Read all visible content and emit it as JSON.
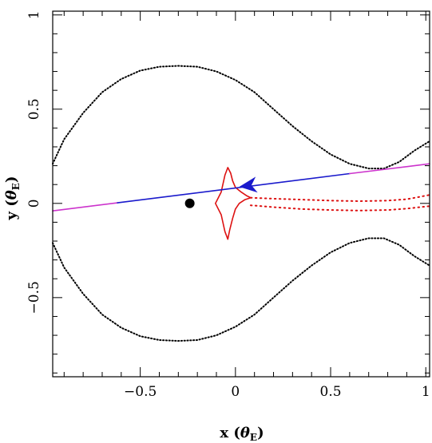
{
  "chart_data": {
    "type": "line",
    "title": "",
    "xlabel": {
      "main": "x",
      "unit_symbol": "θ",
      "unit_sub": "E"
    },
    "ylabel": {
      "main": "y",
      "unit_symbol": "θ",
      "unit_sub": "E"
    },
    "xlim": [
      -0.96,
      1.02
    ],
    "ylim": [
      -0.92,
      1.02
    ],
    "x_ticks": [
      {
        "value": -0.5,
        "label": "−0.5"
      },
      {
        "value": 0,
        "label": "0"
      },
      {
        "value": 0.5,
        "label": "0.5"
      },
      {
        "value": 1,
        "label": "1"
      }
    ],
    "y_ticks": [
      {
        "value": -0.5,
        "label": "−0.5"
      },
      {
        "value": 0,
        "label": "0"
      },
      {
        "value": 0.5,
        "label": "0.5"
      },
      {
        "value": 1,
        "label": "1"
      }
    ],
    "x_minor_step": 0.1,
    "y_minor_step": 0.1,
    "grid": false,
    "colors": {
      "critical_curve": "#000000",
      "caustic": "#dd1111",
      "trajectory_outer": "#cc33cc",
      "trajectory_inner": "#1a1acc",
      "arrow": "#1a1acc",
      "lens_point": "#000000"
    },
    "series": [
      {
        "style": "dotted",
        "color_key": "critical_curve",
        "points": [
          [
            -0.96,
            0.21
          ],
          [
            -0.9,
            0.34
          ],
          [
            -0.8,
            0.48
          ],
          [
            -0.7,
            0.59
          ],
          [
            -0.6,
            0.66
          ],
          [
            -0.5,
            0.705
          ],
          [
            -0.4,
            0.725
          ],
          [
            -0.3,
            0.73
          ],
          [
            -0.2,
            0.725
          ],
          [
            -0.1,
            0.7
          ],
          [
            0.0,
            0.655
          ],
          [
            0.1,
            0.59
          ],
          [
            0.2,
            0.5
          ],
          [
            0.3,
            0.41
          ],
          [
            0.4,
            0.33
          ],
          [
            0.5,
            0.26
          ],
          [
            0.6,
            0.21
          ],
          [
            0.7,
            0.185
          ],
          [
            0.78,
            0.185
          ],
          [
            0.86,
            0.22
          ],
          [
            0.94,
            0.28
          ],
          [
            1.02,
            0.33
          ]
        ]
      },
      {
        "style": "dotted",
        "color_key": "critical_curve",
        "points": [
          [
            -0.96,
            -0.21
          ],
          [
            -0.9,
            -0.34
          ],
          [
            -0.8,
            -0.48
          ],
          [
            -0.7,
            -0.59
          ],
          [
            -0.6,
            -0.66
          ],
          [
            -0.5,
            -0.705
          ],
          [
            -0.4,
            -0.725
          ],
          [
            -0.3,
            -0.73
          ],
          [
            -0.2,
            -0.725
          ],
          [
            -0.1,
            -0.7
          ],
          [
            0.0,
            -0.655
          ],
          [
            0.1,
            -0.59
          ],
          [
            0.2,
            -0.5
          ],
          [
            0.3,
            -0.41
          ],
          [
            0.4,
            -0.33
          ],
          [
            0.5,
            -0.26
          ],
          [
            0.6,
            -0.21
          ],
          [
            0.7,
            -0.185
          ],
          [
            0.78,
            -0.185
          ],
          [
            0.86,
            -0.22
          ],
          [
            0.94,
            -0.28
          ],
          [
            1.02,
            -0.33
          ]
        ]
      },
      {
        "style": "solid",
        "color_key": "caustic",
        "points": [
          [
            -0.04,
            0.19
          ],
          [
            -0.025,
            0.16
          ],
          [
            -0.015,
            0.12
          ],
          [
            0.0,
            0.085
          ],
          [
            0.03,
            0.06
          ],
          [
            0.06,
            0.04
          ],
          [
            0.08,
            0.03
          ],
          [
            0.05,
            0.02
          ],
          [
            0.02,
            0.0
          ],
          [
            0.0,
            -0.03
          ],
          [
            -0.015,
            -0.08
          ],
          [
            -0.03,
            -0.14
          ],
          [
            -0.04,
            -0.19
          ],
          [
            -0.055,
            -0.15
          ],
          [
            -0.075,
            -0.06
          ],
          [
            -0.105,
            0.0
          ],
          [
            -0.075,
            0.06
          ],
          [
            -0.055,
            0.15
          ],
          [
            -0.04,
            0.19
          ]
        ]
      },
      {
        "style": "dotted",
        "color_key": "caustic",
        "points": [
          [
            0.08,
            0.03
          ],
          [
            0.2,
            0.025
          ],
          [
            0.35,
            0.02
          ],
          [
            0.5,
            0.015
          ],
          [
            0.65,
            0.012
          ],
          [
            0.8,
            0.015
          ],
          [
            0.9,
            0.022
          ],
          [
            0.97,
            0.035
          ],
          [
            1.02,
            0.045
          ]
        ]
      },
      {
        "style": "dotted",
        "color_key": "caustic",
        "points": [
          [
            0.08,
            -0.01
          ],
          [
            0.2,
            -0.02
          ],
          [
            0.35,
            -0.03
          ],
          [
            0.5,
            -0.035
          ],
          [
            0.65,
            -0.038
          ],
          [
            0.8,
            -0.035
          ],
          [
            0.9,
            -0.028
          ],
          [
            0.97,
            -0.02
          ],
          [
            1.02,
            -0.015
          ]
        ]
      },
      {
        "style": "solid",
        "color_key": "trajectory_outer",
        "points": [
          [
            -0.96,
            -0.04
          ],
          [
            -0.62,
            0.003
          ]
        ]
      },
      {
        "style": "solid",
        "color_key": "trajectory_inner",
        "points": [
          [
            -0.62,
            0.003
          ],
          [
            0.6,
            0.158
          ]
        ]
      },
      {
        "style": "solid",
        "color_key": "trajectory_outer",
        "points": [
          [
            0.6,
            0.158
          ],
          [
            1.02,
            0.21
          ]
        ]
      }
    ],
    "arrow": {
      "tip": [
        0.02,
        0.088
      ],
      "tail": [
        0.1,
        0.098
      ]
    },
    "lens_point": [
      -0.24,
      0.0
    ]
  }
}
